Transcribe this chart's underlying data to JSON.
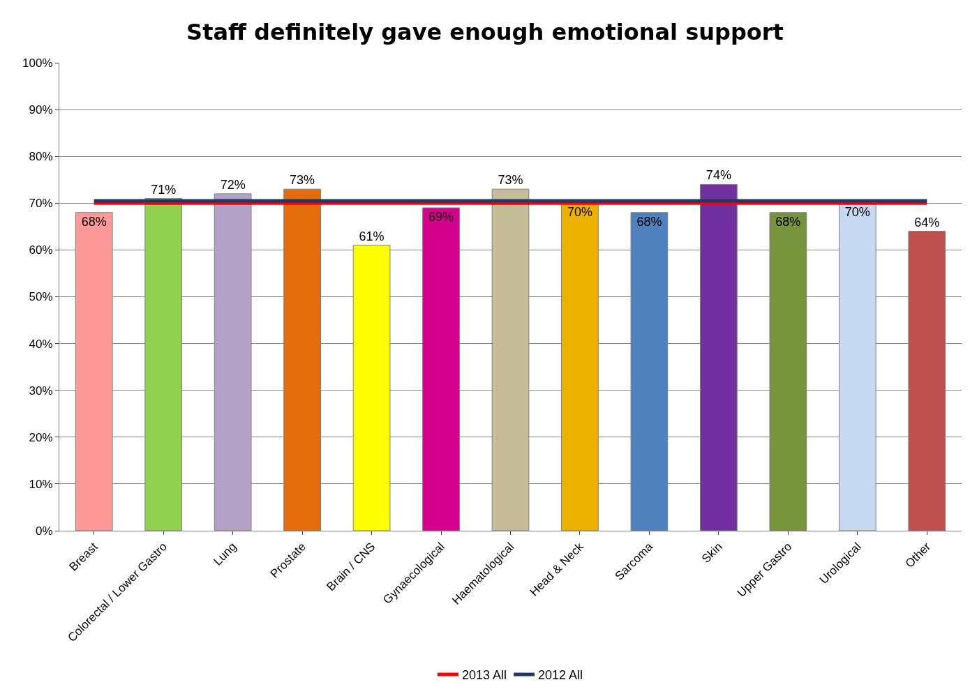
{
  "chart_data": {
    "type": "bar",
    "title": "Staff definitely gave enough emotional support",
    "categories": [
      "Breast",
      "Colorectal / Lower Gastro",
      "Lung",
      "Prostate",
      "Brain / CNS",
      "Gynaecological",
      "Haematological",
      "Head & Neck",
      "Sarcoma",
      "Skin",
      "Upper Gastro",
      "Urological",
      "Other"
    ],
    "series": [
      {
        "colors": [
          "#ff9999",
          "#92d050",
          "#b3a2c7",
          "#e46c0a",
          "#ffff00",
          "#d6008f",
          "#c4bd97",
          "#edb200",
          "#4f81bd",
          "#7030a0",
          "#77933c",
          "#c6d9f1",
          "#c0504d"
        ],
        "values": [
          68,
          71,
          72,
          73,
          61,
          69,
          73,
          70,
          68,
          74,
          68,
          70,
          64
        ],
        "value_labels": [
          "68%",
          "71%",
          "72%",
          "73%",
          "61%",
          "69%",
          "73%",
          "70%",
          "68%",
          "74%",
          "68%",
          "70%",
          "64%"
        ]
      },
      {
        "type": "line",
        "name": "2013 All",
        "color": "#ff0000",
        "values": [
          70,
          70,
          70,
          70,
          70,
          70,
          70,
          70,
          70,
          70,
          70,
          70,
          70
        ]
      },
      {
        "type": "line",
        "name": "2012 All",
        "color": "#1f3864",
        "values": [
          70.5,
          70.5,
          70.5,
          70.5,
          70.5,
          70.5,
          70.5,
          70.5,
          70.5,
          70.5,
          70.5,
          70.5,
          70.5
        ]
      }
    ],
    "ylim": [
      0,
      100
    ],
    "yticks": [
      {
        "value": 0,
        "label": "0%"
      },
      {
        "value": 10,
        "label": "10%"
      },
      {
        "value": 20,
        "label": "20%"
      },
      {
        "value": 30,
        "label": "30%"
      },
      {
        "value": 40,
        "label": "40%"
      },
      {
        "value": 50,
        "label": "50%"
      },
      {
        "value": 60,
        "label": "60%"
      },
      {
        "value": 70,
        "label": "70%"
      },
      {
        "value": 80,
        "label": "80%"
      },
      {
        "value": 90,
        "label": "90%"
      },
      {
        "value": 100,
        "label": "100%"
      }
    ],
    "grid": "y",
    "legend": "bottom",
    "marker": "none",
    "line_style": "solid"
  }
}
